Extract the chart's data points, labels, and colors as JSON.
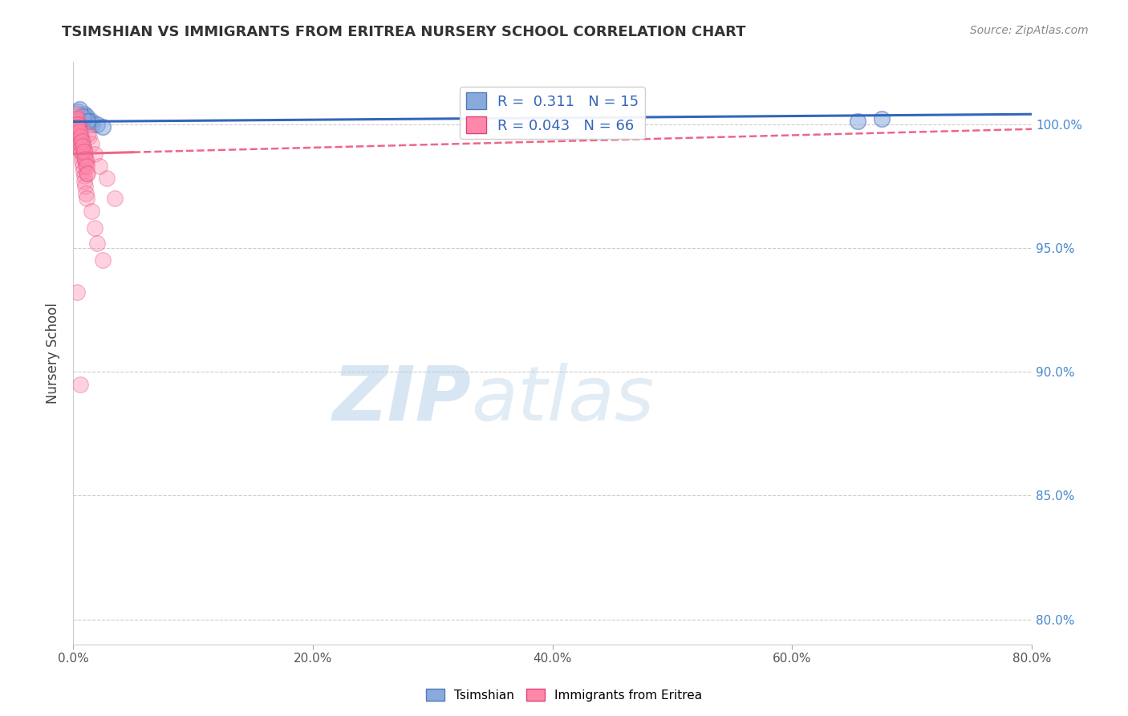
{
  "title": "TSIMSHIAN VS IMMIGRANTS FROM ERITREA NURSERY SCHOOL CORRELATION CHART",
  "source": "Source: ZipAtlas.com",
  "ylabel": "Nursery School",
  "watermark_zip": "ZIP",
  "watermark_atlas": "atlas",
  "xlim": [
    0.0,
    80.0
  ],
  "ylim": [
    79.0,
    102.5
  ],
  "yticks": [
    80.0,
    85.0,
    90.0,
    95.0,
    100.0
  ],
  "xticks": [
    0.0,
    20.0,
    40.0,
    60.0,
    80.0
  ],
  "blue_R": 0.311,
  "blue_N": 15,
  "pink_R": 0.043,
  "pink_N": 66,
  "blue_scatter_color": "#88AADD",
  "blue_edge_color": "#5577BB",
  "pink_scatter_color": "#FF88AA",
  "pink_edge_color": "#DD4477",
  "blue_line_color": "#3366BB",
  "pink_line_color": "#EE6688",
  "legend_label_blue": "Tsimshian",
  "legend_label_pink": "Immigrants from Eritrea",
  "blue_line_y0": 100.1,
  "blue_line_y1": 100.4,
  "pink_line_y0": 98.8,
  "pink_line_y1": 99.8,
  "blue_scatter_x": [
    0.4,
    0.7,
    1.0,
    1.3,
    1.6,
    0.9,
    1.1,
    1.5,
    2.0,
    2.5,
    0.5,
    0.8,
    1.2,
    65.5,
    67.5
  ],
  "blue_scatter_y": [
    100.5,
    100.3,
    100.2,
    100.1,
    100.0,
    100.4,
    100.3,
    100.1,
    100.0,
    99.9,
    100.6,
    100.3,
    100.1,
    100.1,
    100.2
  ],
  "pink_scatter_x": [
    0.15,
    0.2,
    0.25,
    0.3,
    0.35,
    0.4,
    0.45,
    0.5,
    0.55,
    0.6,
    0.65,
    0.7,
    0.75,
    0.8,
    0.85,
    0.9,
    0.95,
    1.0,
    1.05,
    1.1,
    0.2,
    0.3,
    0.4,
    0.5,
    0.6,
    0.7,
    0.8,
    0.9,
    1.0,
    1.1,
    0.25,
    0.35,
    0.45,
    0.55,
    0.65,
    0.75,
    0.85,
    0.95,
    1.05,
    1.15,
    1.3,
    1.5,
    1.8,
    2.2,
    2.8,
    3.5,
    1.2,
    0.5,
    0.6,
    0.7,
    0.3,
    0.4,
    0.5,
    0.6,
    0.7,
    0.8,
    0.9,
    1.0,
    1.1,
    1.2,
    1.5,
    1.8,
    2.0,
    2.5,
    0.3,
    0.6
  ],
  "pink_scatter_y": [
    100.2,
    100.1,
    100.0,
    99.9,
    99.8,
    99.6,
    99.5,
    99.3,
    99.2,
    99.0,
    98.9,
    98.7,
    98.5,
    98.3,
    98.1,
    97.9,
    97.7,
    97.5,
    97.2,
    97.0,
    100.3,
    100.1,
    100.0,
    99.8,
    99.6,
    99.4,
    99.2,
    99.0,
    98.8,
    98.5,
    100.4,
    100.2,
    100.0,
    99.8,
    99.6,
    99.3,
    99.0,
    98.7,
    98.4,
    98.0,
    99.5,
    99.2,
    98.8,
    98.3,
    97.8,
    97.0,
    99.6,
    99.4,
    99.2,
    98.9,
    100.0,
    99.9,
    99.7,
    99.5,
    99.3,
    99.1,
    98.9,
    98.6,
    98.3,
    98.0,
    96.5,
    95.8,
    95.2,
    94.5,
    93.2,
    89.5
  ]
}
